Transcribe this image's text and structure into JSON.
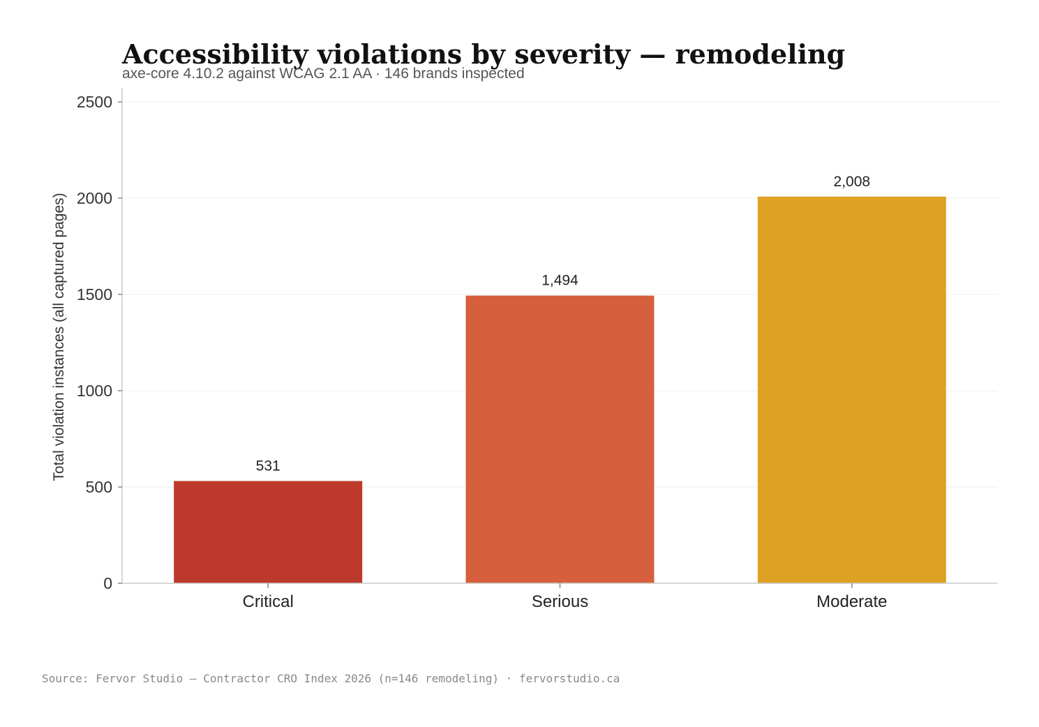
{
  "chart_data": {
    "type": "bar",
    "title": "Accessibility violations by severity — remodeling",
    "subtitle": "axe-core 4.10.2 against WCAG 2.1 AA · 146 brands inspected",
    "xlabel": "",
    "ylabel": "Total violation instances (all captured pages)",
    "categories": [
      "Critical",
      "Serious",
      "Moderate"
    ],
    "values": [
      531,
      1494,
      2008
    ],
    "value_labels": [
      "531",
      "1,494",
      "2,008"
    ],
    "colors": [
      "#bd392b",
      "#d65f3d",
      "#dfa124"
    ],
    "ylim": [
      0,
      2570
    ],
    "yticks": [
      0,
      500,
      1000,
      1500,
      2000,
      2500
    ],
    "grid": true,
    "legend": "none"
  },
  "source": "Source: Fervor Studio — Contractor CRO Index 2026 (n=146 remodeling) · fervorstudio.ca"
}
